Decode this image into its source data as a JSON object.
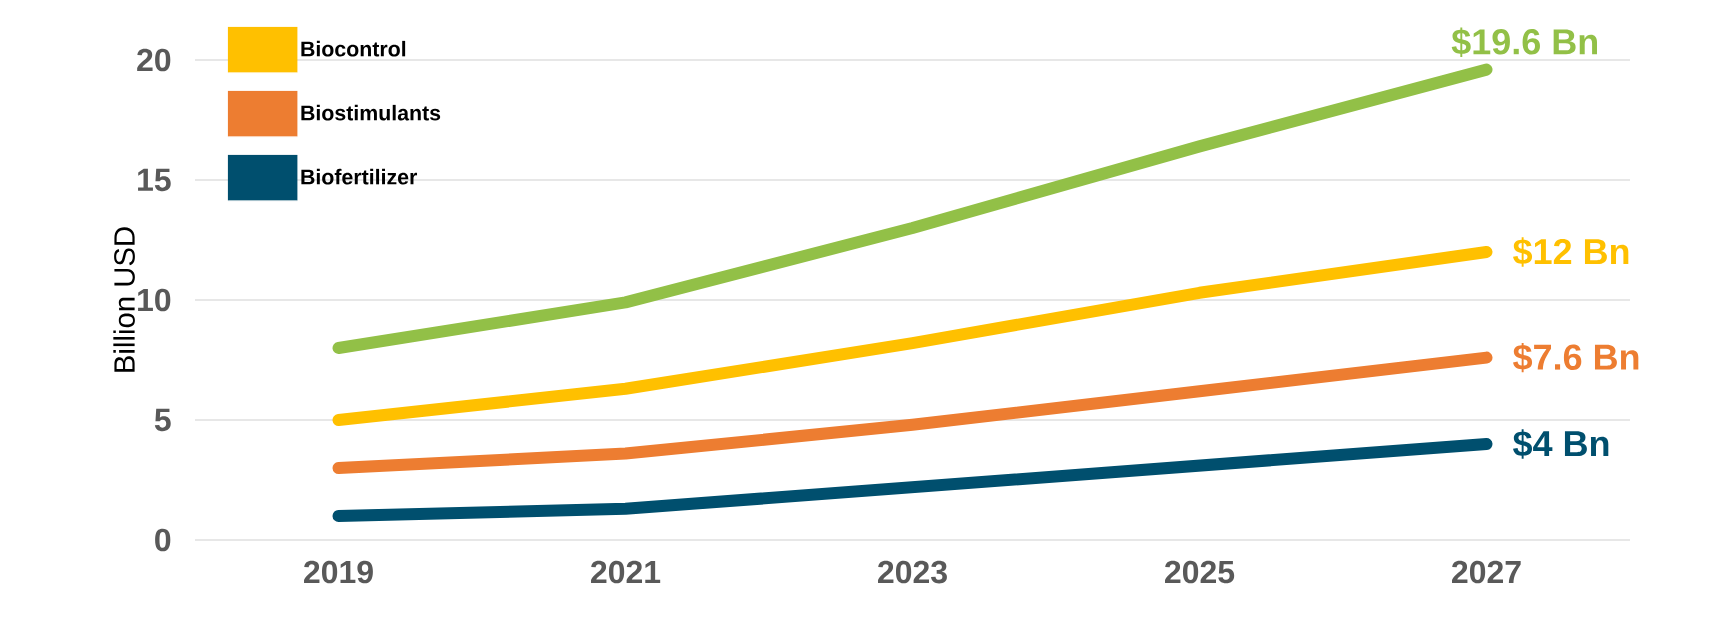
{
  "chart_data": {
    "type": "line",
    "ylabel": "Billion USD",
    "x": [
      2019,
      2021,
      2023,
      2025,
      2027
    ],
    "series": [
      {
        "color": "#92c047",
        "values": [
          8.0,
          9.9,
          13.0,
          16.4,
          19.6
        ],
        "value_labels": [
          null,
          null,
          null,
          null,
          "$19.6 Bn"
        ]
      },
      {
        "name": "Biocontrol",
        "color": "#ffc000",
        "values": [
          5.0,
          6.3,
          8.2,
          10.3,
          12
        ],
        "value_labels": [
          null,
          null,
          null,
          null,
          "$12 Bn"
        ]
      },
      {
        "name": "Biostimulants",
        "color": "#ed7d31",
        "values": [
          3.0,
          3.6,
          4.8,
          6.2,
          7.6
        ],
        "value_labels": [
          null,
          null,
          null,
          null,
          "$7.6 Bn"
        ]
      },
      {
        "name": "Biofertilizer",
        "color": "#004f6e",
        "values": [
          1.0,
          1.3,
          2.2,
          3.1,
          4.0
        ],
        "value_labels": [
          null,
          null,
          null,
          null,
          "$4 Bn"
        ]
      }
    ],
    "xlim": [
      2018,
      2028
    ],
    "xticks": [
      2019,
      2021,
      2023,
      2025,
      2027
    ],
    "ylim": [
      0,
      20
    ],
    "yticks": [
      0,
      5,
      10,
      15,
      20
    ],
    "grid": "y",
    "legend": "top left",
    "marker": "none",
    "line_style": "solid"
  }
}
